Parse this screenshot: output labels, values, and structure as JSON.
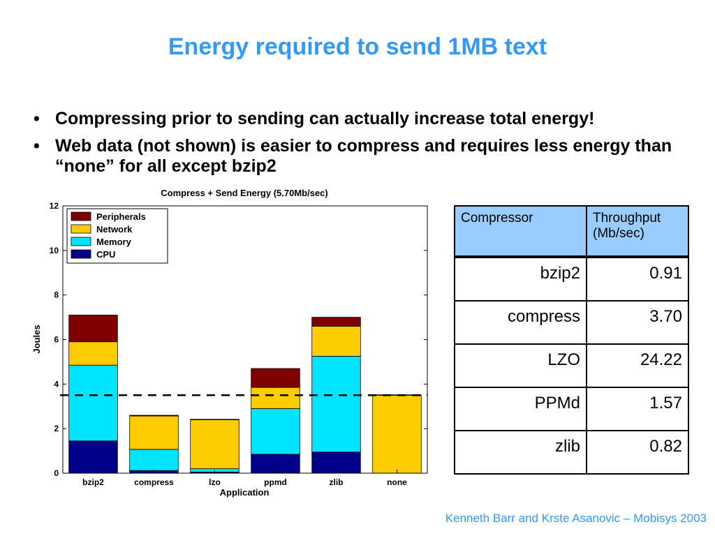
{
  "slide": {
    "title": "Energy required to send 1MB text",
    "bullets": [
      "Compressing prior to sending can actually increase total energy!",
      "Web data (not shown) is easier to compress and requires less energy than “none” for all except bzip2"
    ],
    "bullet_glyph": "•",
    "footer": "Kenneth Barr and Krste Asanovic – Mobisys 2003",
    "accent_color": "#3399ff"
  },
  "chart_data": {
    "type": "bar",
    "stacked": true,
    "title": "Compress + Send Energy (5.70Mb/sec)",
    "xlabel": "Application",
    "ylabel": "Joules",
    "ylim": [
      0,
      12
    ],
    "yticks": [
      0,
      2,
      4,
      6,
      8,
      10,
      12
    ],
    "categories": [
      "bzip2",
      "compress",
      "lzo",
      "ppmd",
      "zlib",
      "none"
    ],
    "series": [
      {
        "name": "CPU",
        "color": "#00008b",
        "values": [
          1.45,
          0.12,
          0.05,
          0.85,
          0.95,
          0.0
        ]
      },
      {
        "name": "Memory",
        "color": "#00e5ff",
        "values": [
          3.4,
          0.95,
          0.15,
          2.05,
          4.3,
          0.0
        ]
      },
      {
        "name": "Network",
        "color": "#ffcc00",
        "values": [
          1.05,
          1.5,
          2.2,
          0.95,
          1.35,
          3.5
        ]
      },
      {
        "name": "Peripherals",
        "color": "#800000",
        "values": [
          1.2,
          0.03,
          0.02,
          0.85,
          0.4,
          0.02
        ]
      }
    ],
    "legend_order": [
      "Peripherals",
      "Network",
      "Memory",
      "CPU"
    ],
    "legend_position": "top-left",
    "reference_line": {
      "value": 3.5,
      "style": "dashed"
    },
    "grid": false
  },
  "table": {
    "headers": [
      "Compressor",
      "Throughput (Mb/sec)"
    ],
    "rows": [
      [
        "bzip2",
        "0.91"
      ],
      [
        "compress",
        "3.70"
      ],
      [
        "LZO",
        "24.22"
      ],
      [
        "PPMd",
        "1.57"
      ],
      [
        "zlib",
        "0.82"
      ]
    ],
    "header_color": "#99ccff"
  }
}
